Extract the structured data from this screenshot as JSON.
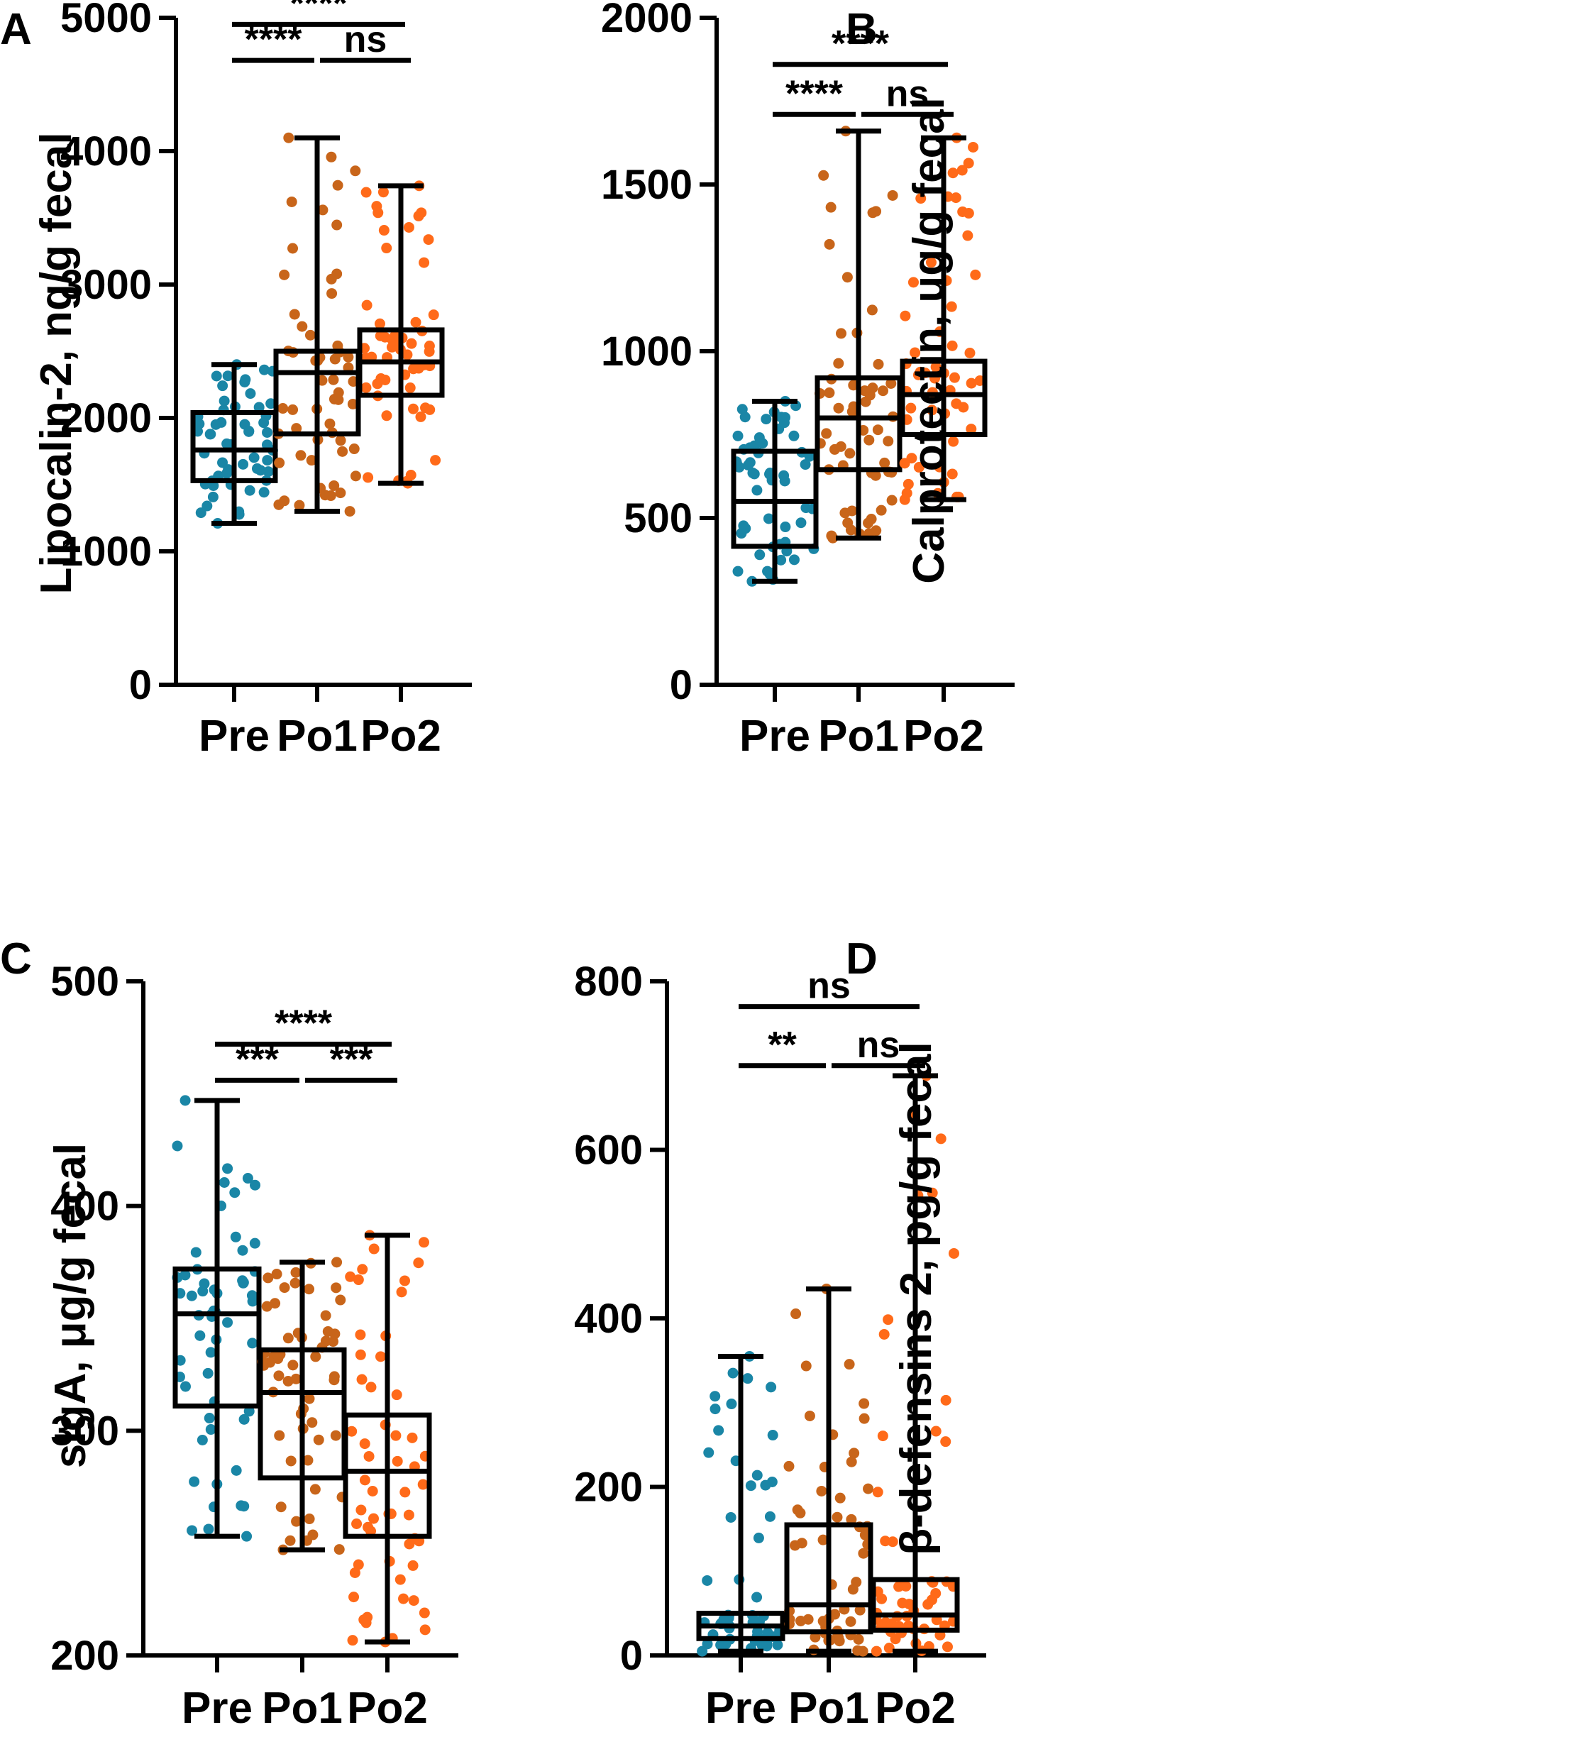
{
  "colors": {
    "pre": "#1a86a6",
    "po1": "#c8651a",
    "po2": "#ff6a19",
    "ink": "#000000"
  },
  "chart_data": [
    {
      "panel": "A",
      "type": "box",
      "ylabel": "Lipocalin-2, ng/g fecal",
      "ylim": [
        0,
        5000
      ],
      "yticks": [
        0,
        1000,
        2000,
        3000,
        4000,
        5000
      ],
      "yticklabels": [
        "0",
        "1000",
        "2000",
        "3000",
        "4000",
        "5000"
      ],
      "categories": [
        "Pre",
        "Po1",
        "Po2"
      ],
      "boxes": [
        {
          "min": 1210,
          "q1": 1530,
          "median": 1760,
          "q3": 2040,
          "max": 2400
        },
        {
          "min": 1300,
          "q1": 1880,
          "median": 2340,
          "q3": 2500,
          "max": 4100
        },
        {
          "min": 1510,
          "q1": 2170,
          "median": 2420,
          "q3": 2660,
          "max": 3740
        }
      ],
      "comparisons": [
        {
          "from": 0,
          "to": 2,
          "label": "****",
          "y": 4950
        },
        {
          "from": 0,
          "to": 1,
          "label": "****",
          "y": 4680
        },
        {
          "from": 1,
          "to": 2,
          "label": "ns",
          "y": 4680
        }
      ]
    },
    {
      "panel": "B",
      "type": "box",
      "ylabel": "Calprotectin, ug/g fecal",
      "ylim": [
        0,
        2000
      ],
      "yticks": [
        0,
        500,
        1000,
        1500,
        2000
      ],
      "yticklabels": [
        "0",
        "500",
        "1000",
        "1500",
        "2000"
      ],
      "categories": [
        "Pre",
        "Po1",
        "Po2"
      ],
      "boxes": [
        {
          "min": 310,
          "q1": 415,
          "median": 550,
          "q3": 700,
          "max": 850
        },
        {
          "min": 440,
          "q1": 645,
          "median": 800,
          "q3": 920,
          "max": 1660
        },
        {
          "min": 555,
          "q1": 750,
          "median": 870,
          "q3": 970,
          "max": 1640
        }
      ],
      "comparisons": [
        {
          "from": 0,
          "to": 2,
          "label": "****",
          "y": 1860
        },
        {
          "from": 0,
          "to": 1,
          "label": "****",
          "y": 1710
        },
        {
          "from": 1,
          "to": 2,
          "label": "ns",
          "y": 1710
        }
      ]
    },
    {
      "panel": "C",
      "type": "box",
      "ylabel": "sIgA, μg/g fecal",
      "ylim": [
        200,
        500
      ],
      "yticks": [
        200,
        300,
        400,
        500
      ],
      "yticklabels": [
        "200",
        "300",
        "400",
        "500"
      ],
      "categories": [
        "Pre",
        "Po1",
        "Po2"
      ],
      "boxes": [
        {
          "min": 253,
          "q1": 311,
          "median": 352,
          "q3": 372,
          "max": 447
        },
        {
          "min": 247,
          "q1": 279,
          "median": 317,
          "q3": 336,
          "max": 375
        },
        {
          "min": 206,
          "q1": 253,
          "median": 282,
          "q3": 307,
          "max": 387
        }
      ],
      "comparisons": [
        {
          "from": 0,
          "to": 2,
          "label": "****",
          "y": 472
        },
        {
          "from": 0,
          "to": 1,
          "label": "***",
          "y": 456
        },
        {
          "from": 1,
          "to": 2,
          "label": "***",
          "y": 456
        }
      ]
    },
    {
      "panel": "D",
      "type": "box",
      "ylabel": "β-defensins 2, pg/g fecal",
      "ylim": [
        0,
        800
      ],
      "yticks": [
        0,
        200,
        400,
        600,
        800
      ],
      "yticklabels": [
        "0",
        "200",
        "400",
        "600",
        "800"
      ],
      "categories": [
        "Pre",
        "Po1",
        "Po2"
      ],
      "boxes": [
        {
          "min": 5,
          "q1": 20,
          "median": 35,
          "q3": 50,
          "max": 355
        },
        {
          "min": 5,
          "q1": 28,
          "median": 60,
          "q3": 155,
          "max": 435
        },
        {
          "min": 5,
          "q1": 30,
          "median": 48,
          "q3": 90,
          "max": 688
        }
      ],
      "comparisons": [
        {
          "from": 0,
          "to": 2,
          "label": "ns",
          "y": 770
        },
        {
          "from": 0,
          "to": 1,
          "label": "**",
          "y": 700
        },
        {
          "from": 1,
          "to": 2,
          "label": "ns",
          "y": 700
        }
      ]
    }
  ]
}
